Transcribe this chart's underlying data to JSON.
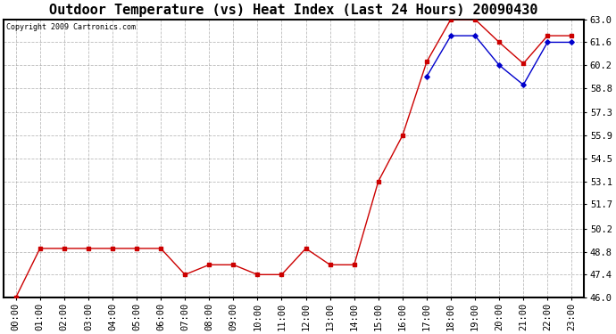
{
  "title": "Outdoor Temperature (vs) Heat Index (Last 24 Hours) 20090430",
  "copyright": "Copyright 2009 Cartronics.com",
  "x_labels": [
    "00:00",
    "01:00",
    "02:00",
    "03:00",
    "04:00",
    "05:00",
    "06:00",
    "07:00",
    "08:00",
    "09:00",
    "10:00",
    "11:00",
    "12:00",
    "13:00",
    "14:00",
    "15:00",
    "16:00",
    "17:00",
    "18:00",
    "19:00",
    "20:00",
    "21:00",
    "22:00",
    "23:00"
  ],
  "outdoor_temp": [
    46.0,
    49.0,
    49.0,
    49.0,
    49.0,
    49.0,
    49.0,
    47.4,
    48.0,
    48.0,
    47.4,
    47.4,
    49.0,
    48.0,
    48.0,
    53.1,
    55.9,
    60.4,
    63.0,
    63.0,
    61.6,
    60.3,
    62.0,
    62.0
  ],
  "heat_index": [
    null,
    null,
    null,
    null,
    null,
    null,
    null,
    null,
    null,
    null,
    null,
    null,
    null,
    null,
    null,
    null,
    null,
    59.5,
    62.0,
    62.0,
    60.2,
    59.0,
    61.6,
    61.6
  ],
  "temp_color": "#cc0000",
  "hi_color": "#0000cc",
  "ylim": [
    46.0,
    63.0
  ],
  "yticks": [
    46.0,
    47.4,
    48.8,
    50.2,
    51.7,
    53.1,
    54.5,
    55.9,
    57.3,
    58.8,
    60.2,
    61.6,
    63.0
  ],
  "background_color": "#ffffff",
  "plot_bg": "#ffffff",
  "grid_color": "#aaaaaa",
  "title_fontsize": 11,
  "tick_fontsize": 7.5
}
